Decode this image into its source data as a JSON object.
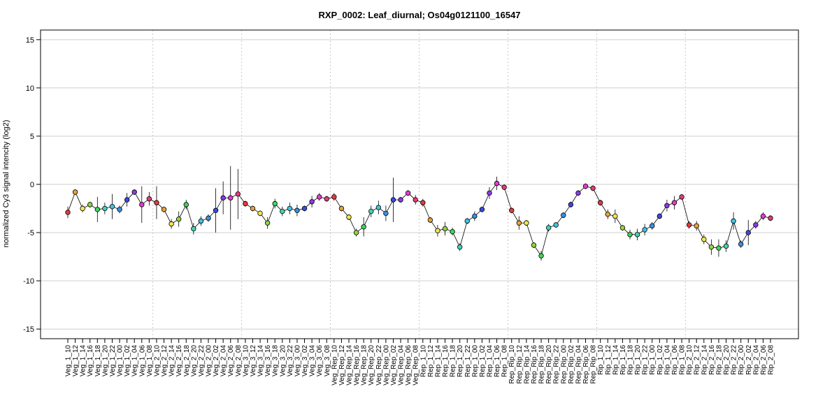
{
  "chart_data": {
    "type": "line",
    "title": "RXP_0002: Leaf_diurnal; Os04g0121100_16547",
    "xlabel": "",
    "ylabel": "normalized Cy3 signal intencity (log2)",
    "ylim": [
      -16,
      16
    ],
    "yticks": [
      -15,
      -10,
      -5,
      0,
      5,
      10,
      15
    ],
    "grid": true,
    "group_separators_after": [
      "Veg_1_08",
      "Veg_2_08",
      "Veg_3_08",
      "Veg_Rep_08",
      "Rep_1_08",
      "Rep_Rip_08",
      "Rip_1_08"
    ],
    "palette": {
      "10": "#e8393a",
      "12": "#e8a13a",
      "14": "#f2e84a",
      "16": "#8fd63e",
      "18": "#3ed65a",
      "20": "#3ed6b4",
      "22": "#3ec4e6",
      "00": "#3a8fe6",
      "02": "#3a4ae6",
      "04": "#8a3ae6",
      "06": "#e63ad6",
      "08": "#e63a7a"
    },
    "x": [
      "Veg_1_10",
      "Veg_1_12",
      "Veg_1_14",
      "Veg_1_16",
      "Veg_1_18",
      "Veg_1_20",
      "Veg_1_22",
      "Veg_1_00",
      "Veg_1_02",
      "Veg_1_04",
      "Veg_1_06",
      "Veg_1_08",
      "Veg_2_10",
      "Veg_2_12",
      "Veg_2_14",
      "Veg_2_16",
      "Veg_2_18",
      "Veg_2_20",
      "Veg_2_22",
      "Veg_2_00",
      "Veg_2_02",
      "Veg_2_04",
      "Veg_2_06",
      "Veg_2_08",
      "Veg_3_10",
      "Veg_3_12",
      "Veg_3_14",
      "Veg_3_16",
      "Veg_3_18",
      "Veg_3_20",
      "Veg_3_22",
      "Veg_3_00",
      "Veg_3_02",
      "Veg_3_04",
      "Veg_3_06",
      "Veg_3_08",
      "Veg_Rep_10",
      "Veg_Rep_12",
      "Veg_Rep_14",
      "Veg_Rep_16",
      "Veg_Rep_18",
      "Veg_Rep_20",
      "Veg_Rep_22",
      "Veg_Rep_00",
      "Veg_Rep_02",
      "Veg_Rep_04",
      "Veg_Rep_06",
      "Veg_Rep_08",
      "Rep_1_10",
      "Rep_1_12",
      "Rep_1_14",
      "Rep_1_16",
      "Rep_1_18",
      "Rep_1_20",
      "Rep_1_22",
      "Rep_1_00",
      "Rep_1_02",
      "Rep_1_04",
      "Rep_1_06",
      "Rep_1_08",
      "Rep_Rip_10",
      "Rep_Rip_12",
      "Rep_Rip_14",
      "Rep_Rip_16",
      "Rep_Rip_18",
      "Rep_Rip_20",
      "Rep_Rip_22",
      "Rep_Rip_00",
      "Rep_Rip_02",
      "Rep_Rip_04",
      "Rep_Rip_06",
      "Rep_Rip_08",
      "Rip_1_10",
      "Rip_1_12",
      "Rip_1_14",
      "Rip_1_16",
      "Rip_1_18",
      "Rip_1_20",
      "Rip_1_22",
      "Rip_1_00",
      "Rip_1_02",
      "Rip_1_04",
      "Rip_1_06",
      "Rip_1_08",
      "Rip_2_10",
      "Rip_2_12",
      "Rip_2_14",
      "Rip_2_16",
      "Rip_2_18",
      "Rip_2_20",
      "Rip_2_22",
      "Rip_2_00",
      "Rip_2_02",
      "Rip_2_04",
      "Rip_2_06",
      "Rip_2_08"
    ],
    "series": [
      {
        "values": [
          -2.9,
          -0.8,
          -2.5,
          -2.1,
          -2.6,
          -2.5,
          -2.3,
          -2.6,
          -1.6,
          -0.8,
          -2.1,
          -1.5,
          -1.9,
          -2.6,
          -4.1,
          -3.6,
          -2.1,
          -4.6,
          -3.8,
          -3.5,
          -2.7,
          -1.4,
          -1.4,
          -1.0,
          -2.0,
          -2.5,
          -3.0,
          -4.0,
          -2.0,
          -2.8,
          -2.5,
          -2.7,
          -2.5,
          -1.8,
          -1.3,
          -1.5,
          -1.3,
          -2.5,
          -3.4,
          -5.0,
          -4.4,
          -2.8,
          -2.4,
          -3.0,
          -1.6,
          -1.6,
          -0.9,
          -1.6,
          -1.9,
          -3.7,
          -4.8,
          -4.6,
          -4.9,
          -6.5,
          -3.8,
          -3.3,
          -2.6,
          -0.9,
          0.1,
          -0.3,
          -2.7,
          -4.0,
          -4.0,
          -6.3,
          -7.4,
          -4.5,
          -4.2,
          -3.2,
          -2.1,
          -0.9,
          -0.2,
          -0.4,
          -1.9,
          -3.1,
          -3.3,
          -4.5,
          -5.2,
          -5.2,
          -4.7,
          -4.3,
          -3.3,
          -2.2,
          -1.9,
          -1.3,
          -4.2,
          -4.3,
          -5.7,
          -6.5,
          -6.6,
          -6.4,
          -3.8,
          -6.2,
          -5.0,
          -4.2,
          -3.3,
          -3.5
        ],
        "errors": [
          0.6,
          0.3,
          0.4,
          0.3,
          1.3,
          0.6,
          1.3,
          0.4,
          0.7,
          0.3,
          1.9,
          0.7,
          1.7,
          0.3,
          0.5,
          0.8,
          0.5,
          0.6,
          0.5,
          0.4,
          2.3,
          1.7,
          3.3,
          2.6,
          0.3,
          0.3,
          0.3,
          0.6,
          0.5,
          0.5,
          0.6,
          0.6,
          0.3,
          0.6,
          0.4,
          0.3,
          0.4,
          0.3,
          0.3,
          0.4,
          1.0,
          0.6,
          0.7,
          0.8,
          2.3,
          0.3,
          0.3,
          0.5,
          0.4,
          0.3,
          0.6,
          0.7,
          0.4,
          0.4,
          0.3,
          0.5,
          0.3,
          0.6,
          0.7,
          0.3,
          0.3,
          0.7,
          0.3,
          0.3,
          0.5,
          0.4,
          0.3,
          0.3,
          0.3,
          0.3,
          0.3,
          0.3,
          0.3,
          0.5,
          0.7,
          0.3,
          0.5,
          0.6,
          0.6,
          0.4,
          0.3,
          0.6,
          0.7,
          0.3,
          0.4,
          0.5,
          0.5,
          0.8,
          0.9,
          0.6,
          0.9,
          0.4,
          1.3,
          0.4,
          0.4,
          0.3
        ]
      }
    ]
  }
}
